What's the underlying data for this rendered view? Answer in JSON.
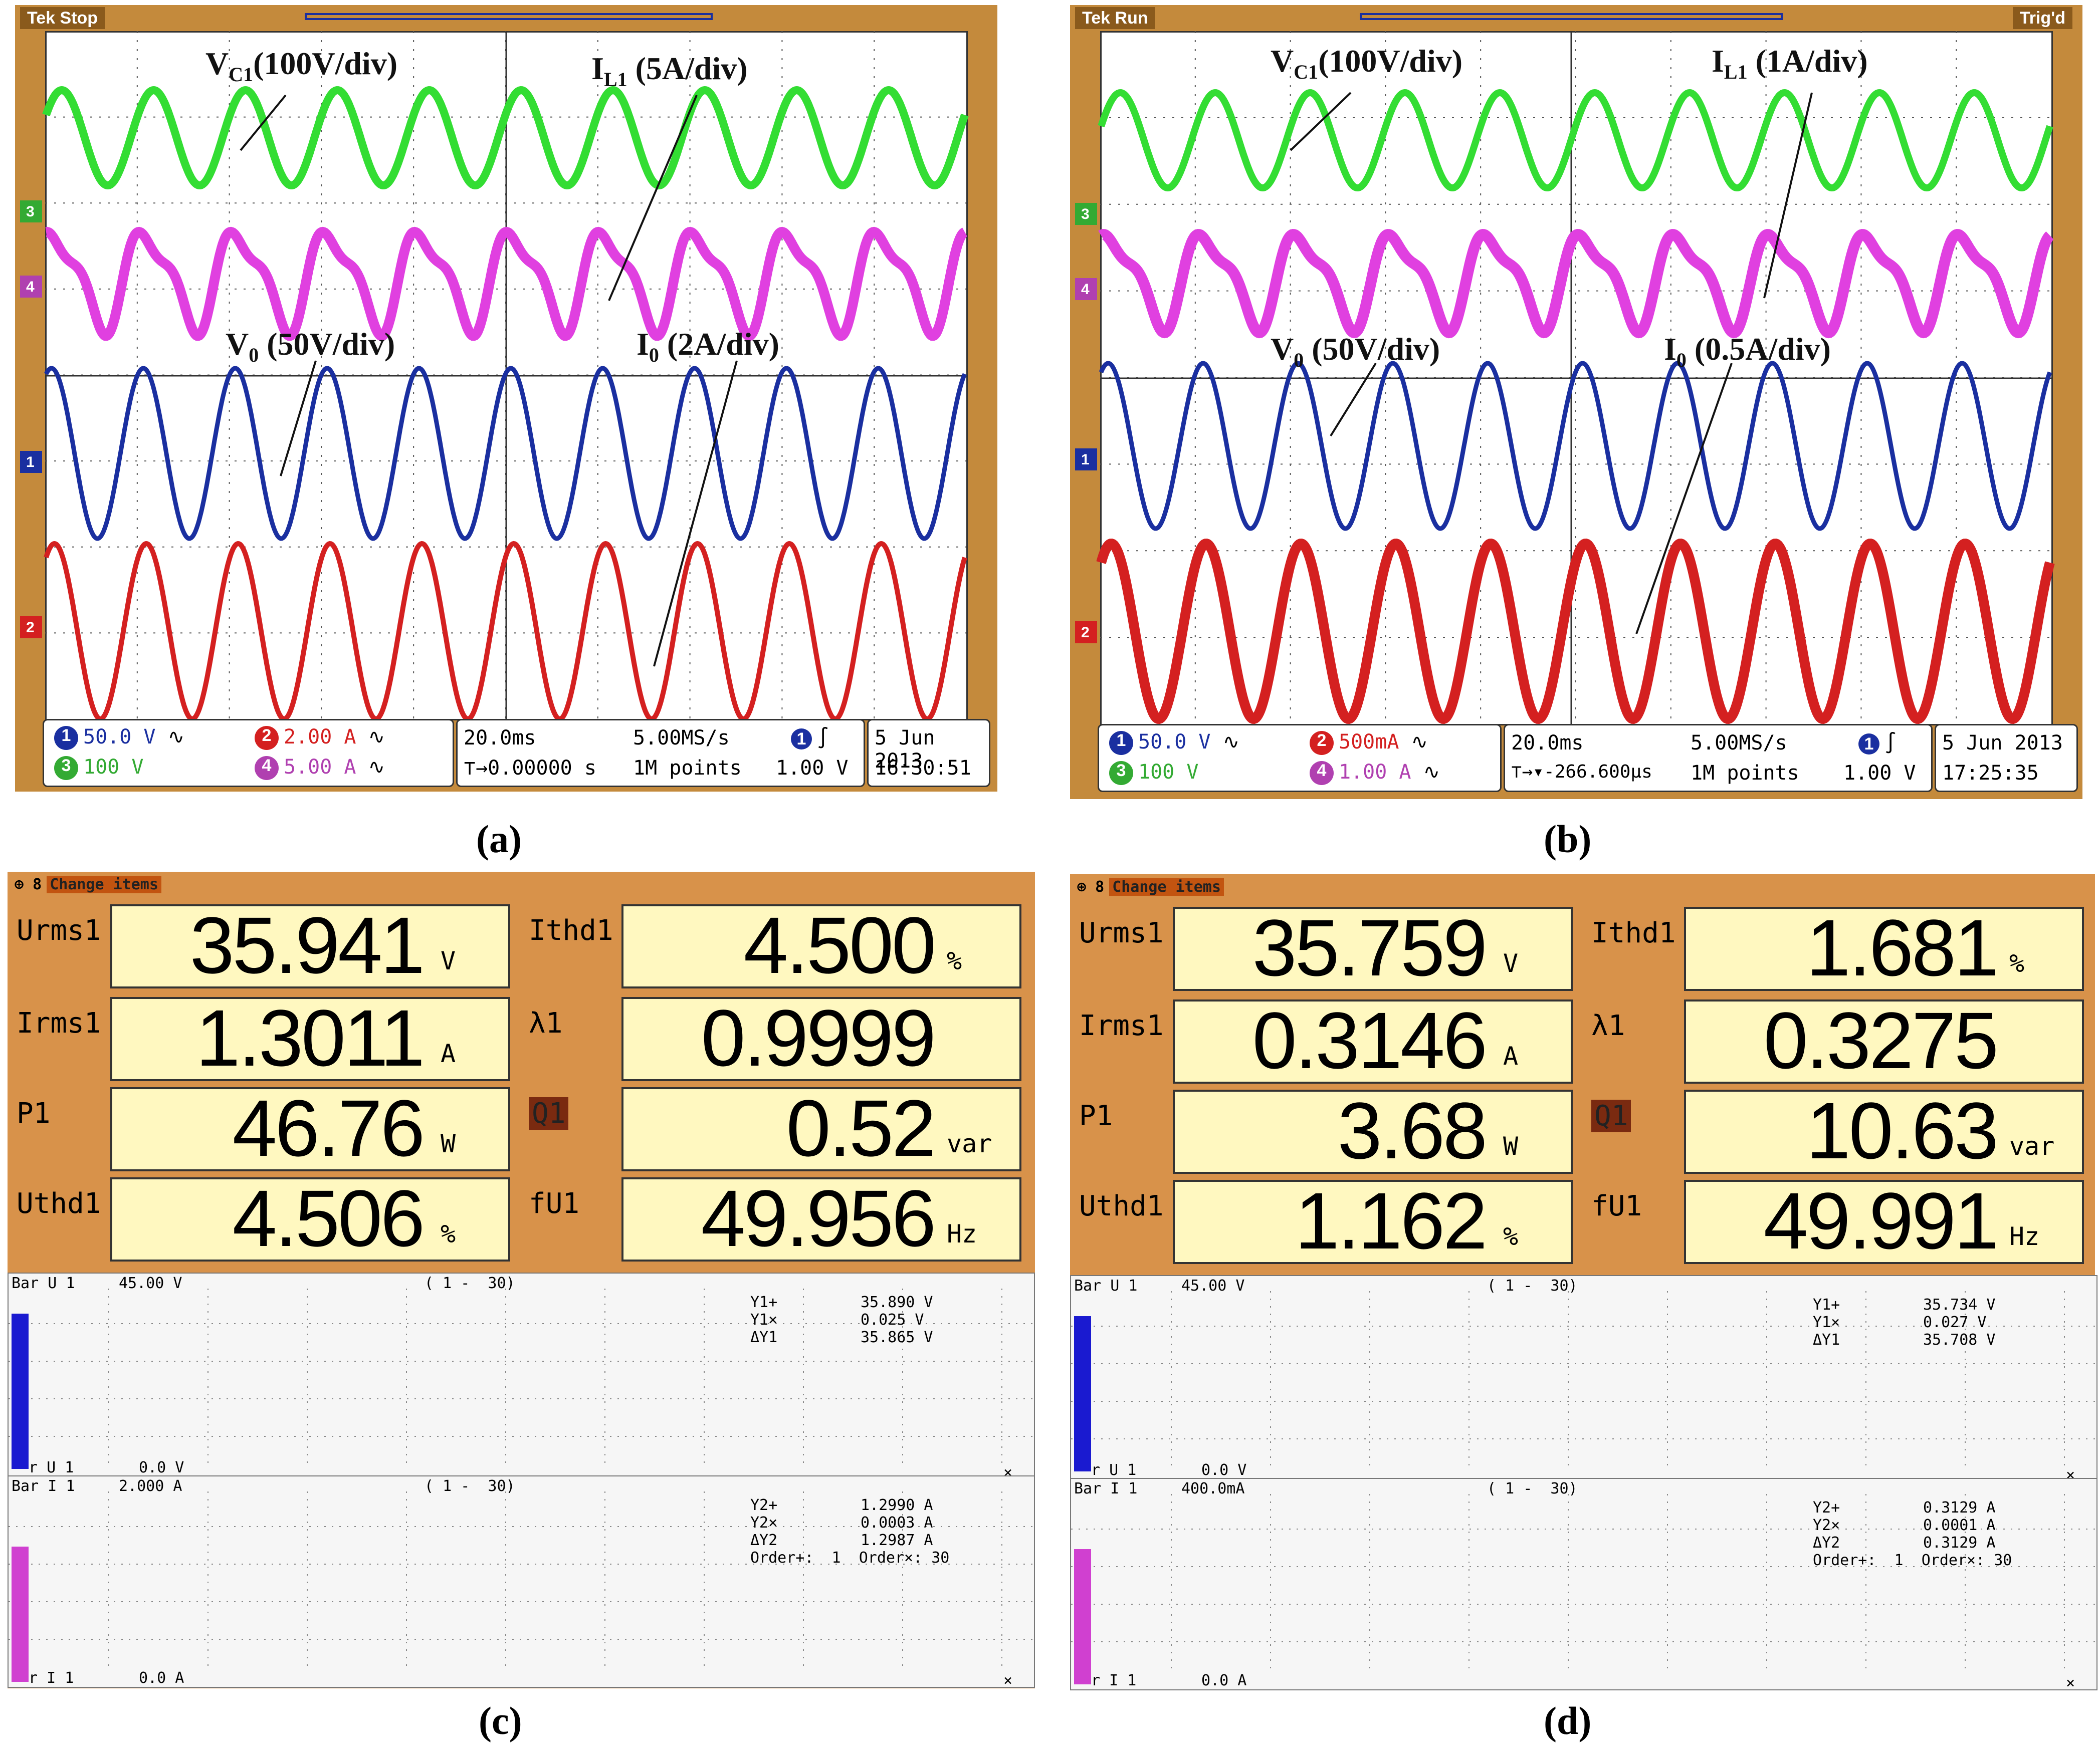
{
  "captions": {
    "a": "(a)",
    "b": "(b)",
    "c": "(c)",
    "d": "(d)"
  },
  "scope_a": {
    "status": "Stop",
    "trig": "",
    "labels": {
      "vc1": "V_C1 (100V/div)",
      "il1": "I_L1 (5A/div)",
      "v0": "V_0 (50V/div)",
      "i0": "I_0 (2A/div)"
    },
    "label_text": {
      "vc1_main": "V",
      "vc1_sub": "C1",
      "vc1_rest": "(100V/div)",
      "il1_main": "I",
      "il1_sub": "L1",
      "il1_rest": " (5A/div)",
      "v0_main": "V",
      "v0_sub": "0",
      "v0_rest": " (50V/div)",
      "i0_main": "I",
      "i0_sub": "0",
      "i0_rest": " (2A/div)"
    },
    "ch1": "50.0 V",
    "ch2": "2.00 A",
    "ch3": "100 V",
    "ch4": "5.00 A",
    "timebase": "20.0ms",
    "sample": "5.00MS/s",
    "pos": "0.00000 s",
    "points": "1M points",
    "trig_level": "1.00 V",
    "date": "5 Jun 2013",
    "time": "16:30:51"
  },
  "scope_b": {
    "status": "Run",
    "trig": "Trig'd",
    "label_text": {
      "vc1_main": "V",
      "vc1_sub": "C1",
      "vc1_rest": "(100V/div)",
      "il1_main": "I",
      "il1_sub": "L1",
      "il1_rest": " (1A/div)",
      "v0_main": "V",
      "v0_sub": "0",
      "v0_rest": " (50V/div)",
      "i0_main": "I",
      "i0_sub": "0",
      "i0_rest": " (0.5A/div)"
    },
    "ch1": "50.0 V",
    "ch2": "500mA",
    "ch3": "100 V",
    "ch4": "1.00 A",
    "timebase": "20.0ms",
    "sample": "5.00MS/s",
    "pos": "▾-266.600µs",
    "points": "1M points",
    "trig_level": "1.00 V",
    "date": "5 Jun 2013",
    "time": "17:25:35"
  },
  "meter_c": {
    "header": "8",
    "header_hl": "Change items",
    "rows": [
      {
        "l_label": "Urms1",
        "l_val": "35.941",
        "l_unit": "V",
        "r_label": "Ithd1",
        "r_val": "4.500",
        "r_unit": "%"
      },
      {
        "l_label": "Irms1",
        "l_val": "1.3011",
        "l_unit": "A",
        "r_label": "λ1",
        "r_val": "0.9999",
        "r_unit": ""
      },
      {
        "l_label": "P1",
        "l_val": "46.76",
        "l_unit": "W",
        "r_label": "Q1",
        "r_val": "0.52",
        "r_unit": "var"
      },
      {
        "l_label": "Uthd1",
        "l_val": "4.506",
        "l_unit": "%",
        "r_label": "fU1",
        "r_val": "49.956",
        "r_unit": "Hz"
      }
    ],
    "bar_u": {
      "title": "Bar U 1",
      "scale": "45.00 V",
      "range": "( 1 -  30)",
      "y1p": "Y1+",
      "y1p_v": "35.890 V",
      "y1x": "Y1×",
      "y1x_v": "0.025 V",
      "dy1": "ΔY1",
      "dy1_v": "35.865 V",
      "bottom": "r U 1",
      "zero": "0.0 V"
    },
    "bar_i": {
      "title": "Bar I 1",
      "scale": "2.000 A",
      "range": "( 1 -  30)",
      "y2p": "Y2+",
      "y2p_v": "1.2990 A",
      "y2x": "Y2×",
      "y2x_v": "0.0003 A",
      "dy2": "ΔY2",
      "dy2_v": "1.2987 A",
      "order": "Order+:  1  Order×: 30",
      "bottom": "r I 1",
      "zero": "0.0 A"
    }
  },
  "meter_d": {
    "header": "8",
    "header_hl": "Change items",
    "rows": [
      {
        "l_label": "Urms1",
        "l_val": "35.759",
        "l_unit": "V",
        "r_label": "Ithd1",
        "r_val": "1.681",
        "r_unit": "%"
      },
      {
        "l_label": "Irms1",
        "l_val": "0.3146",
        "l_unit": "A",
        "r_label": "λ1",
        "r_val": "0.3275",
        "r_unit": ""
      },
      {
        "l_label": "P1",
        "l_val": "3.68",
        "l_unit": "W",
        "r_label": "Q1",
        "r_val": "10.63",
        "r_unit": "var"
      },
      {
        "l_label": "Uthd1",
        "l_val": "1.162",
        "l_unit": "%",
        "r_label": "fU1",
        "r_val": "49.991",
        "r_unit": "Hz"
      }
    ],
    "bar_u": {
      "title": "Bar U 1",
      "scale": "45.00 V",
      "range": "( 1 -  30)",
      "y1p": "Y1+",
      "y1p_v": "35.734 V",
      "y1x": "Y1×",
      "y1x_v": "0.027 V",
      "dy1": "ΔY1",
      "dy1_v": "35.708 V",
      "bottom": "r U 1",
      "zero": "0.0 V"
    },
    "bar_i": {
      "title": "Bar I 1",
      "scale": "400.0mA",
      "range": "( 1 -  30)",
      "y2p": "Y2+",
      "y2p_v": "0.3129 A",
      "y2x": "Y2×",
      "y2x_v": "0.0001 A",
      "dy2": "ΔY2",
      "dy2_v": "0.3129 A",
      "order": "Order+:  1  Order×: 30",
      "bottom": "r I 1",
      "zero": "0.0 A"
    }
  },
  "colors": {
    "ch1": "#1a2fa0",
    "ch2": "#d42020",
    "ch3": "#33dd33",
    "ch4": "#e040e0",
    "frame": "#c48a3c",
    "meter_bg": "#d8924a",
    "meter_box": "#fff8c0"
  }
}
